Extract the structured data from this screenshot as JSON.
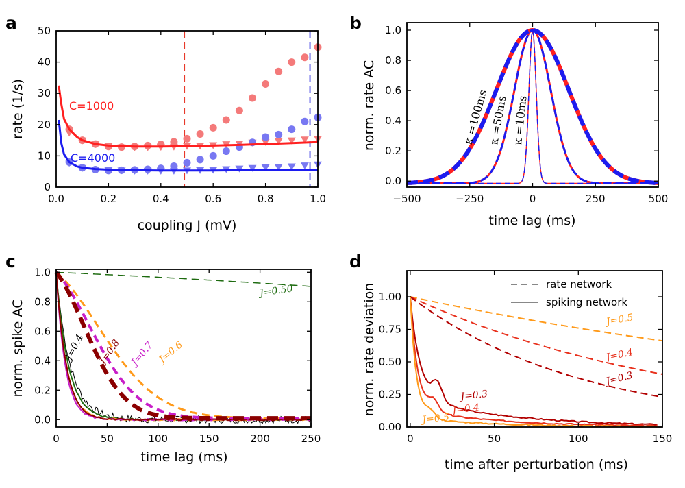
{
  "chart_data": [
    {
      "panel": "a",
      "type": "scatter",
      "xlabel": "coupling J (mV)",
      "ylabel": "rate (1/s)",
      "xlim": [
        0,
        1.0
      ],
      "ylim": [
        0,
        50
      ],
      "xticks": [
        "0.0",
        "0.2",
        "0.4",
        "0.6",
        "0.8",
        "1.0"
      ],
      "yticks": [
        "0",
        "10",
        "20",
        "30",
        "40",
        "50"
      ],
      "vlines": [
        {
          "x": 0.49,
          "color": "#e8392a"
        },
        {
          "x": 0.97,
          "color": "#3434e0"
        }
      ],
      "series": [
        {
          "name": "C=1000",
          "color": "#ff2020",
          "light": "#f47a7a",
          "curve": {
            "x": [
              0.01,
              0.02,
              0.03,
              0.05,
              0.08,
              0.1,
              0.15,
              0.2,
              0.3,
              0.4,
              0.5,
              0.6,
              0.7,
              0.8,
              0.9,
              1.0
            ],
            "y": [
              32.5,
              26.5,
              21.8,
              18.5,
              16.0,
              15.0,
              13.8,
              13.3,
              13.0,
              13.0,
              13.1,
              13.3,
              13.5,
              13.8,
              14.1,
              14.4
            ]
          },
          "circles": {
            "x": [
              0.05,
              0.1,
              0.15,
              0.2,
              0.25,
              0.3,
              0.35,
              0.4,
              0.45,
              0.5,
              0.55,
              0.6,
              0.65,
              0.7,
              0.75,
              0.8,
              0.85,
              0.9,
              0.95,
              1.0
            ],
            "y": [
              18.5,
              15.0,
              13.8,
              13.0,
              12.8,
              13.0,
              13.3,
              13.7,
              14.5,
              15.5,
              17.0,
              19.0,
              21.5,
              24.5,
              28.5,
              33.0,
              37.0,
              40.0,
              41.5,
              44.8
            ]
          },
          "triangles": {
            "x": [
              0.05,
              0.1,
              0.15,
              0.2,
              0.25,
              0.3,
              0.35,
              0.4,
              0.45,
              0.5,
              0.55,
              0.6,
              0.65,
              0.7,
              0.75,
              0.8,
              0.85,
              0.9,
              0.95,
              1.0
            ],
            "y": [
              17.5,
              15.0,
              13.8,
              13.2,
              12.8,
              12.8,
              12.8,
              12.9,
              13.0,
              13.2,
              13.3,
              13.5,
              13.8,
              14.0,
              14.3,
              14.5,
              14.8,
              15.0,
              15.3,
              15.5
            ]
          }
        },
        {
          "name": "C=4000",
          "color": "#1c1cf0",
          "light": "#7878f2",
          "curve": {
            "x": [
              0.01,
              0.02,
              0.03,
              0.05,
              0.08,
              0.1,
              0.15,
              0.2,
              0.3,
              0.4,
              0.5,
              0.6,
              0.7,
              0.8,
              0.9,
              1.0
            ],
            "y": [
              21.5,
              14.0,
              10.5,
              8.0,
              6.6,
              6.2,
              5.8,
              5.6,
              5.4,
              5.3,
              5.3,
              5.3,
              5.4,
              5.4,
              5.5,
              5.5
            ]
          },
          "circles": {
            "x": [
              0.05,
              0.1,
              0.15,
              0.2,
              0.25,
              0.3,
              0.35,
              0.4,
              0.45,
              0.5,
              0.55,
              0.6,
              0.65,
              0.7,
              0.75,
              0.8,
              0.85,
              0.9,
              0.95,
              1.0
            ],
            "y": [
              8.0,
              6.2,
              5.6,
              5.3,
              5.4,
              5.5,
              5.7,
              6.0,
              6.7,
              7.8,
              8.8,
              10.0,
              11.5,
              12.8,
              14.3,
              16.0,
              16.8,
              18.5,
              21.0,
              22.3
            ]
          },
          "triangles": {
            "x": [
              0.05,
              0.1,
              0.15,
              0.2,
              0.25,
              0.3,
              0.35,
              0.4,
              0.45,
              0.5,
              0.55,
              0.6,
              0.65,
              0.7,
              0.75,
              0.8,
              0.85,
              0.9,
              0.95,
              1.0
            ],
            "y": [
              7.8,
              6.2,
              5.7,
              5.5,
              5.4,
              5.3,
              5.3,
              5.3,
              5.3,
              5.4,
              5.5,
              5.6,
              5.8,
              6.0,
              6.2,
              6.4,
              6.5,
              6.7,
              7.0,
              7.3
            ]
          }
        }
      ],
      "annotations": [
        "C=1000",
        "C=4000"
      ]
    },
    {
      "panel": "b",
      "type": "line",
      "xlabel": "time lag (ms)",
      "ylabel": "norm. rate AC",
      "xlim": [
        -500,
        500
      ],
      "ylim": [
        -0.04,
        1.05
      ],
      "xticks": [
        "−500",
        "−250",
        "0",
        "250",
        "500"
      ],
      "yticks": [
        "0.0",
        "0.2",
        "0.4",
        "0.6",
        "0.8",
        "1.0"
      ],
      "series": [
        {
          "name": "red",
          "color": "#ff2020",
          "kappas": [
            100,
            50,
            10
          ],
          "widths": [
            6,
            3,
            1.5
          ],
          "dashed": false
        },
        {
          "name": "blue",
          "color": "#1c1cf0",
          "kappas": [
            100,
            50,
            10
          ],
          "widths": [
            6,
            3,
            1.5
          ],
          "dashed": true
        }
      ],
      "annotations": [
        "κ =100ms",
        "κ =50ms",
        "κ =10ms"
      ]
    },
    {
      "panel": "c",
      "type": "line",
      "xlabel": "time lag (ms)",
      "ylabel": "norm. spike AC",
      "xlim": [
        0,
        250
      ],
      "ylim": [
        -0.05,
        1.02
      ],
      "xticks": [
        "0",
        "50",
        "100",
        "150",
        "200",
        "250"
      ],
      "yticks": [
        "0.0",
        "0.2",
        "0.4",
        "0.6",
        "0.8",
        "1.0"
      ],
      "dashed_series": [
        {
          "name": "J=0.50",
          "color": "#1e6b10",
          "tau": 1100,
          "width": 1.5
        },
        {
          "name": "J=0.6",
          "color": "#ff9a1a",
          "tau": 60,
          "width": 3
        },
        {
          "name": "J=0.7",
          "color": "#c81ec8",
          "tau": 48,
          "width": 4
        },
        {
          "name": "J=0.8",
          "color": "#8b0000",
          "tau": 40,
          "width": 6
        }
      ],
      "solid_series": [
        {
          "color": "#000000",
          "tau": 14,
          "noisy": true
        },
        {
          "color": "#1e6b10",
          "tau": 12
        },
        {
          "color": "#ff9a1a",
          "tau": 10
        },
        {
          "color": "#c81ec8",
          "tau": 9
        },
        {
          "color": "#8b0000",
          "tau": 10
        }
      ],
      "annotations": [
        "J=0.50",
        "J=0.6",
        "J=0.7",
        "J=0.8",
        "J=0.4"
      ]
    },
    {
      "panel": "d",
      "type": "line",
      "xlabel": "time after perturbation (ms)",
      "ylabel": "norm. rate deviation",
      "xlim": [
        -2,
        150
      ],
      "ylim": [
        0,
        1.2
      ],
      "xticks": [
        "0",
        "50",
        "100",
        "150"
      ],
      "yticks": [
        "0.00",
        "0.25",
        "0.50",
        "0.75",
        "1.00"
      ],
      "legend": {
        "placement": "top-right",
        "entries": [
          "rate network",
          "spiking network"
        ]
      },
      "dashed_series": [
        {
          "name": "J=0.5",
          "color": "#ff9a1a",
          "tau": 364
        },
        {
          "name": "J=0.4",
          "color": "#e8301c",
          "tau": 166
        },
        {
          "name": "J=0.3",
          "color": "#b20000",
          "tau": 102
        }
      ],
      "solid_series": [
        {
          "name": "J=0.3",
          "color": "#b20000"
        },
        {
          "name": "J=0.4",
          "color": "#e8301c"
        },
        {
          "name": "J=0.5",
          "color": "#ff9a1a"
        }
      ],
      "annotations": [
        "J=0.5",
        "J=0.4",
        "J=0.3",
        "J=0.3",
        "J=0.4",
        "J=0.5"
      ]
    }
  ]
}
